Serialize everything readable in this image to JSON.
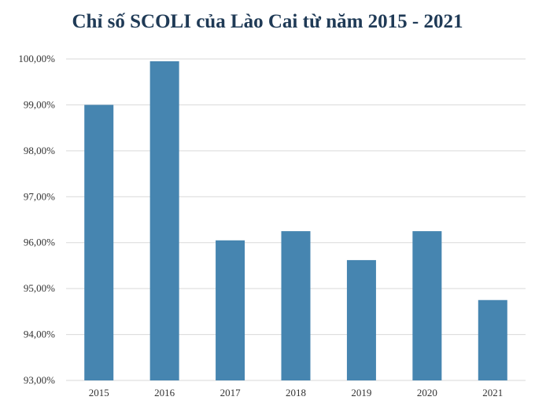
{
  "chart_data": {
    "type": "bar",
    "title": "Chỉ số SCOLI của Lào Cai từ năm 2015 - 2021",
    "categories": [
      "2015",
      "2016",
      "2017",
      "2018",
      "2019",
      "2020",
      "2021"
    ],
    "values": [
      99.0,
      99.95,
      96.05,
      96.25,
      95.62,
      96.25,
      94.75
    ],
    "ylim": [
      93,
      100
    ],
    "yticks": [
      100,
      99,
      98,
      97,
      96,
      95,
      94,
      93
    ],
    "ytick_labels": [
      "100,00%",
      "99,00%",
      "98,00%",
      "97,00%",
      "96,00%",
      "95,00%",
      "94,00%",
      "93,00%"
    ],
    "xlabel": "",
    "ylabel": "",
    "grid": true,
    "bar_color": "#4685b0",
    "grid_color": "#d9d9d9"
  }
}
